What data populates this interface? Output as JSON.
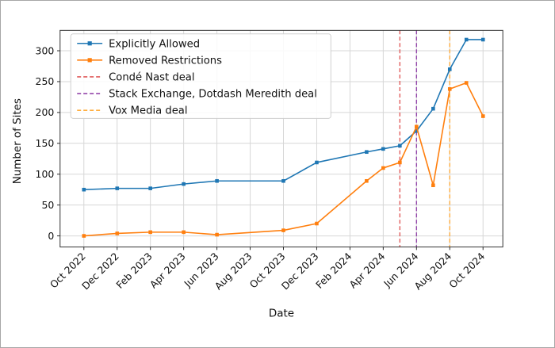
{
  "chart_data": {
    "type": "line",
    "xlabel": "Date",
    "ylabel": "Number of Sites",
    "grid": true,
    "legend_position": "upper left",
    "x_tick_rotation": 45,
    "x_tick_labels": [
      "Oct 2022",
      "Dec 2022",
      "Feb 2023",
      "Apr 2023",
      "Jun 2023",
      "Aug 2023",
      "Oct 2023",
      "Dec 2023",
      "Feb 2024",
      "Apr 2024",
      "Jun 2024",
      "Aug 2024",
      "Oct 2024"
    ],
    "y_ticks": [
      0,
      50,
      100,
      150,
      200,
      250,
      300
    ],
    "ylim": [
      -18,
      333
    ],
    "x_dates": [
      "Oct 2022",
      "Dec 2022",
      "Feb 2023",
      "Apr 2023",
      "Jun 2023",
      "Oct 2023",
      "Dec 2023",
      "Mar 2024",
      "Apr 2024",
      "May 2024",
      "Jun 2024",
      "Jul 2024",
      "Aug 2024",
      "Sep 2024",
      "Oct 2024"
    ],
    "series": [
      {
        "name": "Explicitly Allowed",
        "color": "#1f77b4",
        "marker": "square",
        "values": [
          75,
          77,
          77,
          84,
          89,
          89,
          119,
          136,
          141,
          146,
          170,
          206,
          270,
          318,
          318
        ]
      },
      {
        "name": "Removed Restrictions",
        "color": "#ff7f0e",
        "marker": "square",
        "values": [
          0,
          4,
          6,
          6,
          2,
          9,
          20,
          89,
          110,
          119,
          177,
          82,
          238,
          248,
          194
        ]
      }
    ],
    "event_lines": [
      {
        "label": "Condé Nast deal",
        "color": "#e05c5c",
        "style": "dashed",
        "date": "May 2024"
      },
      {
        "label": "Stack Exchange, Dotdash Meredith deal",
        "color": "#9346aa",
        "style": "dashed",
        "date": "Jun 2024"
      },
      {
        "label": "Vox Media deal",
        "color": "#ffad3d",
        "style": "dashed",
        "date": "Aug 2024"
      }
    ]
  }
}
